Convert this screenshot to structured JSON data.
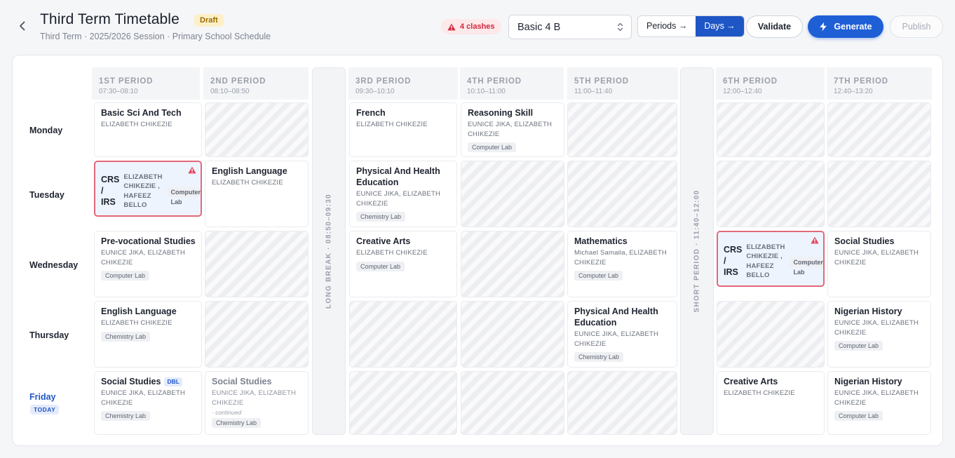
{
  "header": {
    "title": "Third Term Timetable",
    "status_badge": "Draft",
    "subtitle": "Third Term · 2025/2026 Session · Primary School Schedule",
    "clash_label": "4 clashes",
    "class_select": "Basic 4 B",
    "view_periods": "Periods →",
    "view_days": "Days →",
    "validate": "Validate",
    "generate": "Generate",
    "publish": "Publish"
  },
  "periods": [
    {
      "name": "1ST PERIOD",
      "time": "07:30–08:10"
    },
    {
      "name": "2ND PERIOD",
      "time": "08:10–08:50"
    },
    {
      "name": "3RD PERIOD",
      "time": "09:30–10:10"
    },
    {
      "name": "4TH PERIOD",
      "time": "10:10–11:00"
    },
    {
      "name": "5TH PERIOD",
      "time": "11:00–11:40"
    },
    {
      "name": "6TH PERIOD",
      "time": "12:00–12:40"
    },
    {
      "name": "7TH PERIOD",
      "time": "12:40–13:20"
    }
  ],
  "breaks": {
    "long": "LONG BREAK · 08:50–09:30",
    "short": "SHORT PERIOD · 11:40–12:00"
  },
  "days": [
    "Monday",
    "Tuesday",
    "Wednesday",
    "Thursday",
    "Friday"
  ],
  "today_badge": "TODAY",
  "continued_note": "· continued",
  "dbl_badge": "DBL",
  "schedule": {
    "mon": {
      "p1": {
        "subject": "Basic Sci And Tech",
        "teachers": "ELIZABETH CHIKEZIE"
      },
      "p3": {
        "subject": "French",
        "teachers": "ELIZABETH CHIKEZIE"
      },
      "p4": {
        "subject": "Reasoning Skill",
        "teachers": "EUNICE JIKA, ELIZABETH CHIKEZIE",
        "room": "Computer Lab"
      }
    },
    "tue": {
      "p1": {
        "subject": "CRS / IRS",
        "teachers": "ELIZABETH CHIKEZIE , HAFEEZ BELLO",
        "room": "Computer Lab"
      },
      "p2": {
        "subject": "English Language",
        "teachers": "ELIZABETH CHIKEZIE"
      },
      "p3": {
        "subject": "Physical And Health Education",
        "teachers": "EUNICE JIKA, ELIZABETH CHIKEZIE",
        "room": "Chemistry Lab"
      }
    },
    "wed": {
      "p1": {
        "subject": "Pre-vocational Studies",
        "teachers": "EUNICE JIKA, ELIZABETH CHIKEZIE",
        "room": "Computer Lab"
      },
      "p3": {
        "subject": "Creative Arts",
        "teachers": "ELIZABETH CHIKEZIE",
        "room": "Computer Lab"
      },
      "p5": {
        "subject": "Mathematics",
        "teachers": "Michael Samaila, ELIZABETH CHIKEZIE",
        "room": "Computer Lab"
      },
      "p6": {
        "subject": "CRS / IRS",
        "teachers": "ELIZABETH CHIKEZIE , HAFEEZ BELLO",
        "room": "Computer Lab"
      },
      "p7": {
        "subject": "Social Studies",
        "teachers": "EUNICE JIKA, ELIZABETH CHIKEZIE"
      }
    },
    "thu": {
      "p1": {
        "subject": "English Language",
        "teachers": "ELIZABETH CHIKEZIE",
        "room": "Chemistry Lab"
      },
      "p5": {
        "subject": "Physical And Health Education",
        "teachers": "EUNICE JIKA, ELIZABETH CHIKEZIE",
        "room": "Chemistry Lab"
      },
      "p7": {
        "subject": "Nigerian History",
        "teachers": "EUNICE JIKA, ELIZABETH CHIKEZIE",
        "room": "Computer Lab"
      }
    },
    "fri": {
      "p1": {
        "subject": "Social Studies",
        "teachers": "EUNICE JIKA, ELIZABETH CHIKEZIE",
        "room": "Chemistry Lab"
      },
      "p2": {
        "subject": "Social Studies",
        "teachers": "EUNICE JIKA, ELIZABETH CHIKEZIE",
        "room": "Chemistry Lab"
      },
      "p6": {
        "subject": "Creative Arts",
        "teachers": "ELIZABETH CHIKEZIE"
      },
      "p7": {
        "subject": "Nigerian History",
        "teachers": "EUNICE JIKA, ELIZABETH CHIKEZIE",
        "room": "Computer Lab"
      }
    }
  },
  "colors": {
    "accent": "#1f5fd6",
    "clash": "#d02a3f",
    "draft": "#9a6b00"
  }
}
